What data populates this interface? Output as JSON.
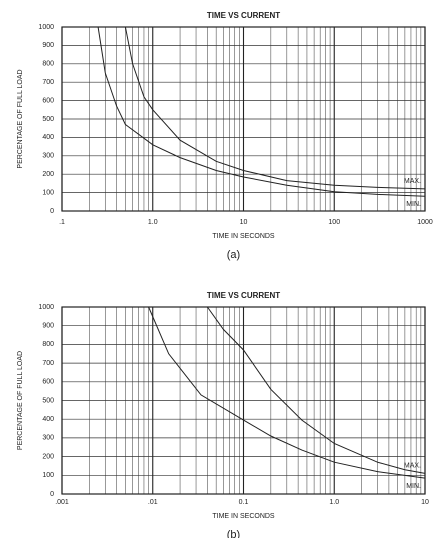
{
  "chart_data": [
    {
      "type": "line",
      "title": "TIME VS CURRENT",
      "x_label": "TIME IN SECONDS",
      "y_label": "PERCENTAGE OF FULL LOAD",
      "caption": "(a)",
      "x_scale": "log",
      "grid": true,
      "xlim": [
        0.1,
        1000
      ],
      "xticks": [
        {
          "value": 0.1,
          "label": ".1"
        },
        {
          "value": 1,
          "label": "1.0"
        },
        10,
        100,
        1000
      ],
      "ylim": [
        0,
        1000
      ],
      "yticks": [
        0,
        100,
        200,
        300,
        400,
        500,
        600,
        700,
        800,
        900,
        1000
      ],
      "series": [
        {
          "name": "MAX.",
          "color": "#222",
          "x": [
            0.5,
            0.6,
            0.8,
            1,
            2,
            5,
            10,
            30,
            100,
            300,
            1000
          ],
          "values": [
            1000,
            800,
            620,
            550,
            385,
            270,
            220,
            165,
            140,
            128,
            120
          ]
        },
        {
          "name": "MIN.",
          "color": "#222",
          "x": [
            0.25,
            0.3,
            0.4,
            0.5,
            1,
            2,
            5,
            10,
            30,
            100,
            300,
            1000
          ],
          "values": [
            1000,
            750,
            570,
            470,
            360,
            290,
            220,
            185,
            140,
            105,
            90,
            80
          ]
        }
      ]
    },
    {
      "type": "line",
      "title": "TIME VS CURRENT",
      "x_label": "TIME IN SECONDS",
      "y_label": "PERCENTAGE OF FULL LOAD",
      "caption": "(b)",
      "x_scale": "log",
      "grid": true,
      "xlim": [
        0.001,
        10
      ],
      "xticks": [
        {
          "value": 0.001,
          "label": ".001"
        },
        {
          "value": 0.01,
          "label": ".01"
        },
        0.1,
        {
          "value": 1,
          "label": "1.0"
        },
        10
      ],
      "ylim": [
        0,
        1000
      ],
      "yticks": [
        0,
        100,
        200,
        300,
        400,
        500,
        600,
        700,
        800,
        900,
        1000
      ],
      "series": [
        {
          "name": "MAX.",
          "color": "#222",
          "x": [
            0.04,
            0.06,
            0.1,
            0.2,
            0.44,
            1,
            3,
            6,
            10
          ],
          "values": [
            1000,
            880,
            770,
            560,
            395,
            270,
            170,
            130,
            110
          ]
        },
        {
          "name": "MIN.",
          "color": "#222",
          "x": [
            0.009,
            0.015,
            0.034,
            0.1,
            0.2,
            0.44,
            1,
            3,
            10
          ],
          "values": [
            1000,
            750,
            530,
            395,
            310,
            235,
            170,
            120,
            85
          ]
        }
      ]
    }
  ]
}
